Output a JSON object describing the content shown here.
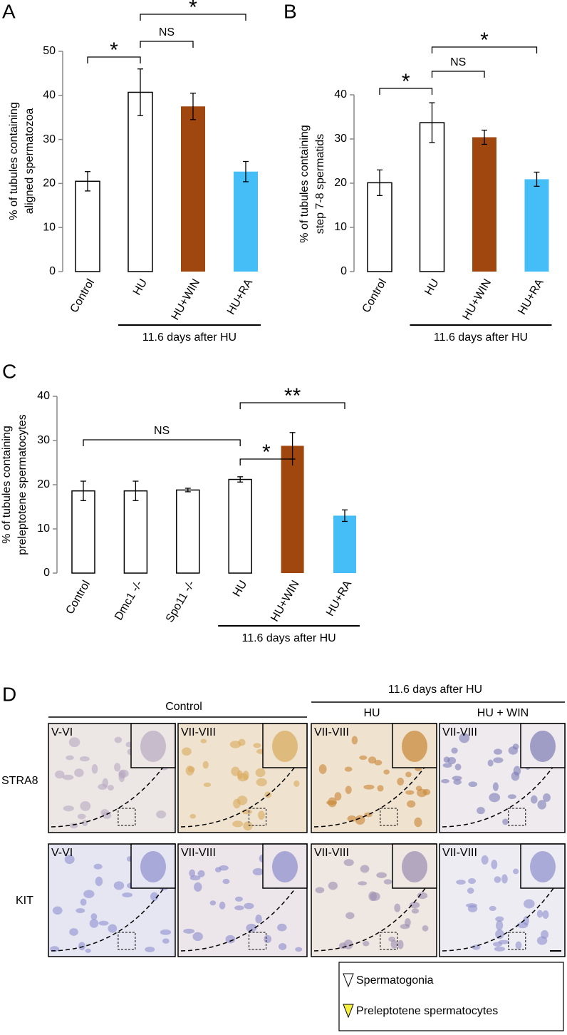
{
  "chart_data": [
    {
      "type": "bar",
      "panel": "A",
      "ylabel": [
        "% of tubules containing",
        "aligned spermatozoa"
      ],
      "categories": [
        "Control",
        "HU",
        "HU+WIN",
        "HU+RA"
      ],
      "values": [
        20.5,
        40.7,
        37.5,
        22.7
      ],
      "errors": [
        2.2,
        5.3,
        3.0,
        2.3
      ],
      "colors": [
        "#ffffff",
        "#ffffff",
        "#a0470f",
        "#45bdf6"
      ],
      "ylim": [
        0,
        50
      ],
      "yticks": [
        0,
        10,
        20,
        30,
        40,
        50
      ],
      "brackets": [
        {
          "between": [
            "Control",
            "HU"
          ],
          "label": "*"
        },
        {
          "between": [
            "HU",
            "HU+WIN"
          ],
          "label": "NS"
        },
        {
          "between": [
            "HU",
            "HU+RA"
          ],
          "label": "*"
        }
      ],
      "group": {
        "label": "11.6 days after HU",
        "categories": [
          "HU",
          "HU+WIN",
          "HU+RA"
        ]
      }
    },
    {
      "type": "bar",
      "panel": "B",
      "ylabel": [
        "% of tubules containing",
        "step 7-8 spermatids"
      ],
      "categories": [
        "Control",
        "HU",
        "HU+WIN",
        "HU+RA"
      ],
      "values": [
        20.1,
        33.7,
        30.4,
        20.9
      ],
      "errors": [
        2.9,
        4.5,
        1.6,
        1.6
      ],
      "colors": [
        "#ffffff",
        "#ffffff",
        "#a0470f",
        "#45bdf6"
      ],
      "ylim": [
        0,
        40
      ],
      "yticks": [
        0,
        10,
        20,
        30,
        40
      ],
      "brackets": [
        {
          "between": [
            "Control",
            "HU"
          ],
          "label": "*"
        },
        {
          "between": [
            "HU",
            "HU+WIN"
          ],
          "label": "NS"
        },
        {
          "between": [
            "HU",
            "HU+RA"
          ],
          "label": "*"
        }
      ],
      "group": {
        "label": "11.6 days after HU",
        "categories": [
          "HU",
          "HU+WIN",
          "HU+RA"
        ]
      }
    },
    {
      "type": "bar",
      "panel": "C",
      "ylabel": [
        "% of tubules containing",
        "preleptotene spermatocytes"
      ],
      "categories": [
        "Control",
        "Dmc1 -/-",
        "Spo11 -/-",
        "HU",
        "HU+WIN",
        "HU+RA"
      ],
      "values": [
        18.6,
        18.6,
        18.8,
        21.2,
        28.8,
        13.0
      ],
      "errors": [
        2.2,
        2.2,
        0.4,
        0.6,
        3.0,
        1.3
      ],
      "colors": [
        "#ffffff",
        "#ffffff",
        "#ffffff",
        "#ffffff",
        "#a0470f",
        "#45bdf6"
      ],
      "ylim": [
        0,
        40
      ],
      "yticks": [
        0,
        10,
        20,
        30,
        40
      ],
      "brackets": [
        {
          "between": [
            "Control",
            "HU"
          ],
          "label": "NS"
        },
        {
          "between": [
            "HU",
            "HU+WIN"
          ],
          "label": "*"
        },
        {
          "between": [
            "HU",
            "HU+RA"
          ],
          "label": "**"
        }
      ],
      "group": {
        "label": "11.6 days after HU",
        "categories": [
          "HU",
          "HU+WIN",
          "HU+RA"
        ]
      }
    }
  ],
  "panel_d": {
    "panel": "D",
    "control": "Control",
    "after": "11.6 days after HU",
    "hu": "HU",
    "huwin": "HU + WIN",
    "rows": [
      {
        "label": "STRA8",
        "stages": [
          "V-VI",
          "VII-VIII",
          "VII-VIII",
          "VII-VIII"
        ]
      },
      {
        "label": "KIT",
        "stages": [
          "V-VI",
          "VII-VIII",
          "VII-VIII",
          "VII-VIII"
        ]
      }
    ],
    "legend": [
      "Spermatogonia",
      "Preleptotene spermatocytes"
    ]
  }
}
